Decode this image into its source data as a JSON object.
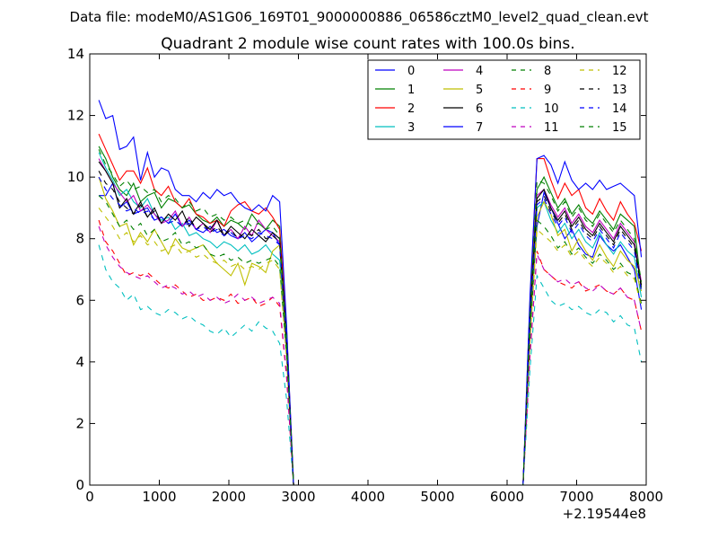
{
  "figure": {
    "suptitle": "Data file: modeM0/AS1G06_169T01_9000000886_06586cztM0_level2_quad_clean.evt"
  },
  "chart_data": {
    "type": "line",
    "title": "Quadrant 2 module wise count rates with 100.0s bins.",
    "xlabel": "",
    "ylabel": "",
    "x_offset_label": "+2.19544e8",
    "xlim": [
      0,
      8000
    ],
    "ylim": [
      0,
      14
    ],
    "xticks": [
      0,
      1000,
      2000,
      3000,
      4000,
      5000,
      6000,
      7000,
      8000
    ],
    "xtick_labels": [
      "0",
      "1000",
      "2000",
      "3000",
      "4000",
      "5000",
      "6000",
      "7000",
      "8000"
    ],
    "yticks": [
      0,
      2,
      4,
      6,
      8,
      10,
      12,
      14
    ],
    "ytick_labels": [
      "0",
      "2",
      "4",
      "6",
      "8",
      "10",
      "12",
      "14"
    ],
    "grid": false,
    "legend_position": "top-right",
    "legend_columns": 4,
    "x": [
      130,
      230,
      330,
      430,
      530,
      630,
      730,
      830,
      930,
      1030,
      1130,
      1230,
      1330,
      1430,
      1530,
      1630,
      1730,
      1830,
      1930,
      2030,
      2130,
      2230,
      2330,
      2430,
      2530,
      2630,
      2730,
      2830,
      2930,
      3030,
      6230,
      6330,
      6430,
      6530,
      6630,
      6730,
      6830,
      6930,
      7030,
      7130,
      7230,
      7330,
      7430,
      7530,
      7630,
      7730,
      7830,
      7930
    ],
    "series": [
      {
        "name": "0",
        "color": "#0000ff",
        "dash": "solid",
        "values": [
          9.4,
          9.4,
          9.8,
          9.0,
          9.2,
          8.8,
          8.9,
          9.0,
          8.6,
          8.7,
          8.5,
          8.8,
          8.4,
          8.6,
          8.3,
          8.2,
          8.4,
          8.2,
          8.3,
          8.1,
          8.0,
          8.2,
          7.9,
          8.1,
          8.3,
          8.2,
          7.8,
          4.4,
          0,
          0,
          0,
          5.2,
          8.4,
          9.5,
          9.0,
          8.5,
          8.0,
          8.3,
          7.8,
          7.5,
          7.4,
          8.1,
          7.8,
          7.6,
          7.8,
          7.4,
          7.0,
          5.7
        ]
      },
      {
        "name": "1",
        "color": "#008000",
        "dash": "solid",
        "values": [
          11.0,
          10.6,
          10.0,
          9.6,
          9.4,
          9.8,
          9.2,
          9.4,
          9.5,
          9.0,
          9.3,
          9.2,
          9.0,
          9.1,
          8.8,
          8.6,
          8.5,
          8.7,
          8.4,
          8.6,
          8.5,
          8.3,
          8.8,
          8.5,
          8.3,
          8.6,
          8.4,
          4.9,
          0,
          0,
          0,
          5.7,
          9.6,
          10.0,
          9.5,
          9.0,
          9.3,
          8.8,
          9.1,
          8.7,
          8.5,
          8.9,
          8.6,
          8.3,
          8.8,
          8.6,
          8.4,
          6.4
        ]
      },
      {
        "name": "2",
        "color": "#ff0000",
        "dash": "solid",
        "values": [
          11.4,
          10.9,
          10.4,
          9.9,
          10.2,
          10.2,
          9.8,
          10.3,
          9.6,
          9.4,
          9.7,
          9.2,
          9.0,
          9.3,
          8.8,
          8.7,
          8.5,
          8.6,
          8.4,
          8.9,
          9.1,
          9.2,
          8.9,
          8.8,
          9.0,
          8.7,
          8.3,
          5.1,
          0,
          0,
          0,
          6.0,
          10.6,
          10.6,
          9.9,
          9.3,
          9.8,
          9.4,
          9.6,
          9.0,
          8.8,
          9.3,
          8.9,
          8.6,
          9.2,
          8.8,
          8.5,
          7.6
        ]
      },
      {
        "name": "3",
        "color": "#00bfbf",
        "dash": "solid",
        "values": [
          10.8,
          10.3,
          9.9,
          9.4,
          9.6,
          9.2,
          9.0,
          9.3,
          8.8,
          8.6,
          8.7,
          8.3,
          8.5,
          8.1,
          8.2,
          8.0,
          7.9,
          7.7,
          7.9,
          7.8,
          7.6,
          7.8,
          7.5,
          7.6,
          7.8,
          7.5,
          7.3,
          4.5,
          0,
          0,
          0,
          5.3,
          9.0,
          9.2,
          8.6,
          8.2,
          8.5,
          8.0,
          8.3,
          7.9,
          7.7,
          8.2,
          7.8,
          7.5,
          7.9,
          7.6,
          7.4,
          6.1
        ]
      },
      {
        "name": "4",
        "color": "#bf00bf",
        "dash": "solid",
        "values": [
          10.6,
          10.2,
          9.8,
          9.5,
          9.2,
          9.4,
          8.9,
          9.1,
          8.8,
          8.5,
          8.6,
          8.9,
          8.4,
          8.7,
          8.3,
          8.5,
          8.2,
          8.6,
          8.1,
          8.3,
          8.0,
          8.4,
          8.1,
          8.6,
          8.3,
          8.1,
          7.9,
          4.6,
          0,
          0,
          0,
          5.4,
          9.4,
          9.6,
          9.1,
          8.7,
          9.0,
          8.5,
          8.8,
          8.4,
          8.2,
          8.6,
          8.3,
          8.0,
          8.5,
          8.2,
          7.9,
          6.6
        ]
      },
      {
        "name": "5",
        "color": "#bfbf00",
        "dash": "solid",
        "values": [
          10.0,
          9.3,
          8.9,
          8.4,
          8.5,
          7.8,
          8.2,
          7.9,
          8.3,
          7.9,
          7.5,
          8.0,
          7.7,
          7.6,
          7.7,
          7.8,
          7.5,
          7.2,
          7.0,
          6.8,
          7.2,
          6.5,
          7.2,
          7.1,
          6.9,
          7.6,
          7.8,
          4.3,
          0,
          0,
          0,
          4.9,
          8.7,
          9.2,
          8.8,
          8.1,
          8.3,
          7.6,
          8.0,
          7.6,
          7.3,
          7.8,
          7.4,
          7.1,
          7.6,
          7.3,
          7.1,
          6.3
        ]
      },
      {
        "name": "6",
        "color": "#000000",
        "dash": "solid",
        "values": [
          10.5,
          10.2,
          9.8,
          9.0,
          9.3,
          8.8,
          9.2,
          8.7,
          9.0,
          8.5,
          8.8,
          8.6,
          8.9,
          8.4,
          8.7,
          8.5,
          8.3,
          8.6,
          8.1,
          8.4,
          8.2,
          8.0,
          8.3,
          8.1,
          7.9,
          8.2,
          8.0,
          4.7,
          0,
          0,
          0,
          5.5,
          9.3,
          9.6,
          9.0,
          8.6,
          8.9,
          8.4,
          8.7,
          8.3,
          8.1,
          8.5,
          8.2,
          7.9,
          8.4,
          8.1,
          7.8,
          6.5
        ]
      },
      {
        "name": "7",
        "color": "#0000ff",
        "dash": "solid",
        "values": [
          12.5,
          11.9,
          12.0,
          10.9,
          11.0,
          11.3,
          9.9,
          10.8,
          10.0,
          10.3,
          10.2,
          9.6,
          9.4,
          9.4,
          9.2,
          9.5,
          9.3,
          9.6,
          9.4,
          9.5,
          9.2,
          9.0,
          8.9,
          9.1,
          8.9,
          9.4,
          9.2,
          5.2,
          0,
          0,
          0,
          6.2,
          10.6,
          10.7,
          10.4,
          9.8,
          10.5,
          9.9,
          9.6,
          9.8,
          9.6,
          9.9,
          9.6,
          9.7,
          9.8,
          9.6,
          9.4,
          7.4
        ]
      },
      {
        "name": "8",
        "color": "#008000",
        "dash": "dashed",
        "values": [
          9.4,
          9.2,
          8.8,
          8.4,
          8.6,
          8.3,
          8.5,
          8.1,
          8.3,
          7.9,
          8.0,
          8.2,
          7.8,
          7.9,
          7.7,
          7.8,
          7.5,
          7.4,
          7.5,
          7.3,
          7.4,
          7.2,
          7.3,
          7.2,
          7.3,
          7.4,
          7.1,
          4.2,
          0,
          0,
          0,
          4.8,
          8.6,
          8.4,
          8.1,
          7.7,
          7.9,
          7.5,
          7.7,
          7.4,
          7.2,
          7.5,
          7.3,
          7.0,
          7.2,
          6.9,
          6.8,
          5.9
        ]
      },
      {
        "name": "9",
        "color": "#ff0000",
        "dash": "dashed",
        "values": [
          8.6,
          7.9,
          7.6,
          7.2,
          6.8,
          6.9,
          6.8,
          6.9,
          6.7,
          6.5,
          6.4,
          6.5,
          6.3,
          6.1,
          6.2,
          6.0,
          6.0,
          6.1,
          6.0,
          6.2,
          5.9,
          6.0,
          6.1,
          5.8,
          5.9,
          6.1,
          5.8,
          3.5,
          0,
          0,
          0,
          4.2,
          7.6,
          7.0,
          6.8,
          6.6,
          6.5,
          6.4,
          6.6,
          6.3,
          6.4,
          6.5,
          6.3,
          6.2,
          6.4,
          6.1,
          6.0,
          5.0
        ]
      },
      {
        "name": "10",
        "color": "#00bfbf",
        "dash": "dashed",
        "values": [
          7.8,
          7.0,
          6.6,
          6.4,
          6.0,
          6.2,
          5.7,
          5.8,
          5.6,
          5.5,
          5.7,
          5.6,
          5.4,
          5.5,
          5.3,
          5.2,
          5.0,
          4.9,
          5.1,
          4.8,
          5.0,
          5.2,
          5.0,
          5.3,
          5.1,
          5.0,
          4.6,
          2.8,
          0,
          0,
          0,
          3.8,
          6.8,
          6.4,
          6.0,
          5.8,
          5.9,
          5.7,
          5.8,
          5.6,
          5.5,
          5.7,
          5.6,
          5.3,
          5.5,
          5.2,
          5.1,
          4.0
        ]
      },
      {
        "name": "11",
        "color": "#bf00bf",
        "dash": "dashed",
        "values": [
          8.4,
          7.8,
          7.4,
          7.1,
          6.9,
          6.8,
          6.7,
          6.8,
          6.6,
          6.4,
          6.5,
          6.4,
          6.2,
          6.3,
          6.1,
          6.2,
          6.0,
          6.1,
          5.9,
          6.0,
          6.2,
          6.0,
          6.1,
          5.9,
          6.0,
          6.1,
          5.9,
          3.6,
          0,
          0,
          0,
          4.3,
          7.5,
          7.0,
          6.8,
          6.6,
          6.7,
          6.5,
          6.6,
          6.4,
          6.3,
          6.5,
          6.3,
          6.2,
          6.4,
          6.1,
          6.0,
          5.0
        ]
      },
      {
        "name": "12",
        "color": "#bfbf00",
        "dash": "dashed",
        "values": [
          9.0,
          8.7,
          8.4,
          8.0,
          8.2,
          7.9,
          8.1,
          7.8,
          7.9,
          7.6,
          7.7,
          7.8,
          7.5,
          7.6,
          7.4,
          7.5,
          7.3,
          7.2,
          7.3,
          7.1,
          7.2,
          7.0,
          7.1,
          7.0,
          7.2,
          7.3,
          7.0,
          4.1,
          0,
          0,
          0,
          4.7,
          8.3,
          8.1,
          7.9,
          7.6,
          7.8,
          7.4,
          7.6,
          7.3,
          7.1,
          7.4,
          7.2,
          6.9,
          7.1,
          6.8,
          6.7,
          5.8
        ]
      },
      {
        "name": "13",
        "color": "#000000",
        "dash": "dashed",
        "values": [
          10.2,
          9.8,
          9.6,
          9.2,
          9.0,
          8.8,
          9.1,
          8.7,
          8.9,
          8.5,
          8.8,
          8.6,
          8.4,
          8.7,
          8.3,
          8.5,
          8.2,
          8.4,
          8.1,
          8.3,
          8.0,
          8.2,
          8.1,
          8.3,
          8.0,
          8.1,
          7.9,
          4.6,
          0,
          0,
          0,
          5.4,
          9.2,
          9.4,
          8.9,
          8.5,
          8.8,
          8.3,
          8.6,
          8.2,
          8.0,
          8.4,
          8.1,
          7.8,
          8.3,
          8.0,
          7.7,
          6.4
        ]
      },
      {
        "name": "14",
        "color": "#0000ff",
        "dash": "dashed",
        "values": [
          10.0,
          9.6,
          9.3,
          9.1,
          8.9,
          9.0,
          8.8,
          8.9,
          8.6,
          8.7,
          8.5,
          8.6,
          8.4,
          8.5,
          8.3,
          8.4,
          8.2,
          8.3,
          8.1,
          8.2,
          8.0,
          8.1,
          8.0,
          8.2,
          8.1,
          8.0,
          7.8,
          4.5,
          0,
          0,
          0,
          5.3,
          9.1,
          9.3,
          8.8,
          8.4,
          8.7,
          8.2,
          8.5,
          8.1,
          7.9,
          8.3,
          8.0,
          7.7,
          8.2,
          7.9,
          7.6,
          6.3
        ]
      },
      {
        "name": "15",
        "color": "#008000",
        "dash": "dashed",
        "values": [
          10.9,
          10.4,
          10.1,
          9.7,
          9.9,
          9.6,
          9.7,
          9.5,
          9.6,
          9.2,
          9.4,
          9.3,
          9.0,
          9.2,
          8.9,
          9.0,
          8.7,
          8.8,
          8.6,
          8.7,
          8.5,
          8.6,
          8.4,
          8.5,
          8.3,
          8.4,
          8.1,
          4.7,
          0,
          0,
          0,
          5.6,
          9.9,
          9.8,
          9.4,
          8.9,
          9.2,
          8.7,
          9.0,
          8.6,
          8.4,
          8.8,
          8.5,
          8.2,
          8.6,
          8.3,
          8.0,
          6.6
        ]
      }
    ]
  }
}
